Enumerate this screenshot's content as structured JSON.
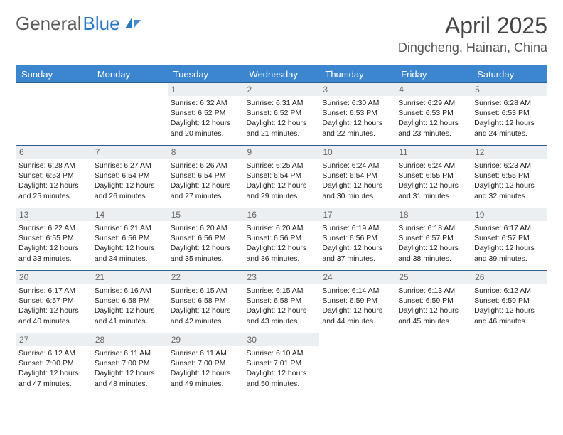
{
  "brand": {
    "part1": "General",
    "part2": "Blue"
  },
  "header": {
    "title": "April 2025",
    "location": "Dingcheng, Hainan, China"
  },
  "colors": {
    "header_bg": "#3b86cf",
    "header_text": "#ffffff",
    "border": "#2f5f8f",
    "daynum_bg": "#eceff1",
    "brand_gray": "#5b5b5b",
    "brand_blue": "#2b78c2"
  },
  "weekdays": [
    "Sunday",
    "Monday",
    "Tuesday",
    "Wednesday",
    "Thursday",
    "Friday",
    "Saturday"
  ],
  "weeks": [
    [
      null,
      null,
      {
        "n": "1",
        "sunrise": "Sunrise: 6:32 AM",
        "sunset": "Sunset: 6:52 PM",
        "day1": "Daylight: 12 hours",
        "day2": "and 20 minutes."
      },
      {
        "n": "2",
        "sunrise": "Sunrise: 6:31 AM",
        "sunset": "Sunset: 6:52 PM",
        "day1": "Daylight: 12 hours",
        "day2": "and 21 minutes."
      },
      {
        "n": "3",
        "sunrise": "Sunrise: 6:30 AM",
        "sunset": "Sunset: 6:53 PM",
        "day1": "Daylight: 12 hours",
        "day2": "and 22 minutes."
      },
      {
        "n": "4",
        "sunrise": "Sunrise: 6:29 AM",
        "sunset": "Sunset: 6:53 PM",
        "day1": "Daylight: 12 hours",
        "day2": "and 23 minutes."
      },
      {
        "n": "5",
        "sunrise": "Sunrise: 6:28 AM",
        "sunset": "Sunset: 6:53 PM",
        "day1": "Daylight: 12 hours",
        "day2": "and 24 minutes."
      }
    ],
    [
      {
        "n": "6",
        "sunrise": "Sunrise: 6:28 AM",
        "sunset": "Sunset: 6:53 PM",
        "day1": "Daylight: 12 hours",
        "day2": "and 25 minutes."
      },
      {
        "n": "7",
        "sunrise": "Sunrise: 6:27 AM",
        "sunset": "Sunset: 6:54 PM",
        "day1": "Daylight: 12 hours",
        "day2": "and 26 minutes."
      },
      {
        "n": "8",
        "sunrise": "Sunrise: 6:26 AM",
        "sunset": "Sunset: 6:54 PM",
        "day1": "Daylight: 12 hours",
        "day2": "and 27 minutes."
      },
      {
        "n": "9",
        "sunrise": "Sunrise: 6:25 AM",
        "sunset": "Sunset: 6:54 PM",
        "day1": "Daylight: 12 hours",
        "day2": "and 29 minutes."
      },
      {
        "n": "10",
        "sunrise": "Sunrise: 6:24 AM",
        "sunset": "Sunset: 6:54 PM",
        "day1": "Daylight: 12 hours",
        "day2": "and 30 minutes."
      },
      {
        "n": "11",
        "sunrise": "Sunrise: 6:24 AM",
        "sunset": "Sunset: 6:55 PM",
        "day1": "Daylight: 12 hours",
        "day2": "and 31 minutes."
      },
      {
        "n": "12",
        "sunrise": "Sunrise: 6:23 AM",
        "sunset": "Sunset: 6:55 PM",
        "day1": "Daylight: 12 hours",
        "day2": "and 32 minutes."
      }
    ],
    [
      {
        "n": "13",
        "sunrise": "Sunrise: 6:22 AM",
        "sunset": "Sunset: 6:55 PM",
        "day1": "Daylight: 12 hours",
        "day2": "and 33 minutes."
      },
      {
        "n": "14",
        "sunrise": "Sunrise: 6:21 AM",
        "sunset": "Sunset: 6:56 PM",
        "day1": "Daylight: 12 hours",
        "day2": "and 34 minutes."
      },
      {
        "n": "15",
        "sunrise": "Sunrise: 6:20 AM",
        "sunset": "Sunset: 6:56 PM",
        "day1": "Daylight: 12 hours",
        "day2": "and 35 minutes."
      },
      {
        "n": "16",
        "sunrise": "Sunrise: 6:20 AM",
        "sunset": "Sunset: 6:56 PM",
        "day1": "Daylight: 12 hours",
        "day2": "and 36 minutes."
      },
      {
        "n": "17",
        "sunrise": "Sunrise: 6:19 AM",
        "sunset": "Sunset: 6:56 PM",
        "day1": "Daylight: 12 hours",
        "day2": "and 37 minutes."
      },
      {
        "n": "18",
        "sunrise": "Sunrise: 6:18 AM",
        "sunset": "Sunset: 6:57 PM",
        "day1": "Daylight: 12 hours",
        "day2": "and 38 minutes."
      },
      {
        "n": "19",
        "sunrise": "Sunrise: 6:17 AM",
        "sunset": "Sunset: 6:57 PM",
        "day1": "Daylight: 12 hours",
        "day2": "and 39 minutes."
      }
    ],
    [
      {
        "n": "20",
        "sunrise": "Sunrise: 6:17 AM",
        "sunset": "Sunset: 6:57 PM",
        "day1": "Daylight: 12 hours",
        "day2": "and 40 minutes."
      },
      {
        "n": "21",
        "sunrise": "Sunrise: 6:16 AM",
        "sunset": "Sunset: 6:58 PM",
        "day1": "Daylight: 12 hours",
        "day2": "and 41 minutes."
      },
      {
        "n": "22",
        "sunrise": "Sunrise: 6:15 AM",
        "sunset": "Sunset: 6:58 PM",
        "day1": "Daylight: 12 hours",
        "day2": "and 42 minutes."
      },
      {
        "n": "23",
        "sunrise": "Sunrise: 6:15 AM",
        "sunset": "Sunset: 6:58 PM",
        "day1": "Daylight: 12 hours",
        "day2": "and 43 minutes."
      },
      {
        "n": "24",
        "sunrise": "Sunrise: 6:14 AM",
        "sunset": "Sunset: 6:59 PM",
        "day1": "Daylight: 12 hours",
        "day2": "and 44 minutes."
      },
      {
        "n": "25",
        "sunrise": "Sunrise: 6:13 AM",
        "sunset": "Sunset: 6:59 PM",
        "day1": "Daylight: 12 hours",
        "day2": "and 45 minutes."
      },
      {
        "n": "26",
        "sunrise": "Sunrise: 6:12 AM",
        "sunset": "Sunset: 6:59 PM",
        "day1": "Daylight: 12 hours",
        "day2": "and 46 minutes."
      }
    ],
    [
      {
        "n": "27",
        "sunrise": "Sunrise: 6:12 AM",
        "sunset": "Sunset: 7:00 PM",
        "day1": "Daylight: 12 hours",
        "day2": "and 47 minutes."
      },
      {
        "n": "28",
        "sunrise": "Sunrise: 6:11 AM",
        "sunset": "Sunset: 7:00 PM",
        "day1": "Daylight: 12 hours",
        "day2": "and 48 minutes."
      },
      {
        "n": "29",
        "sunrise": "Sunrise: 6:11 AM",
        "sunset": "Sunset: 7:00 PM",
        "day1": "Daylight: 12 hours",
        "day2": "and 49 minutes."
      },
      {
        "n": "30",
        "sunrise": "Sunrise: 6:10 AM",
        "sunset": "Sunset: 7:01 PM",
        "day1": "Daylight: 12 hours",
        "day2": "and 50 minutes."
      },
      null,
      null,
      null
    ]
  ]
}
